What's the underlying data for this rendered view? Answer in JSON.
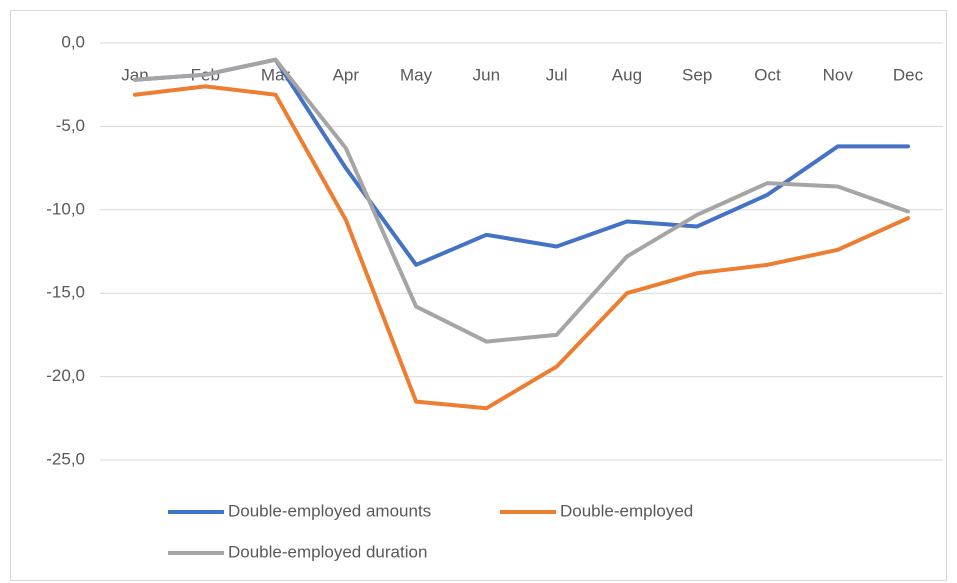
{
  "chart_data": {
    "type": "line",
    "categories": [
      "Jan",
      "Feb",
      "Mar",
      "Apr",
      "May",
      "Jun",
      "Jul",
      "Aug",
      "Sep",
      "Oct",
      "Nov",
      "Dec"
    ],
    "series": [
      {
        "name": "Double-employed amounts",
        "color": "#4472c4",
        "values": [
          -2.2,
          -1.9,
          -1.0,
          -7.5,
          -13.3,
          -11.5,
          -12.2,
          -10.7,
          -11.0,
          -9.1,
          -6.2,
          -6.2
        ]
      },
      {
        "name": "Double-employed",
        "color": "#ed7d31",
        "values": [
          -3.1,
          -2.6,
          -3.1,
          -10.6,
          -21.5,
          -21.9,
          -19.4,
          -15.0,
          -13.8,
          -13.3,
          -12.4,
          -10.5
        ]
      },
      {
        "name": "Double-employed duration",
        "color": "#a5a5a5",
        "values": [
          -2.2,
          -1.9,
          -1.0,
          -6.3,
          -15.8,
          -17.9,
          -17.5,
          -12.8,
          -10.3,
          -8.4,
          -8.6,
          -10.1
        ]
      }
    ],
    "ylim": [
      -25,
      0
    ],
    "yticks": [
      {
        "value": 0,
        "label": "0,0"
      },
      {
        "value": -5,
        "label": "-5,0"
      },
      {
        "value": -10,
        "label": "-10,0"
      },
      {
        "value": -15,
        "label": "-15,0"
      },
      {
        "value": -20,
        "label": "-20,0"
      },
      {
        "value": -25,
        "label": "-25,0"
      }
    ],
    "grid": true,
    "legend": "bottom"
  }
}
